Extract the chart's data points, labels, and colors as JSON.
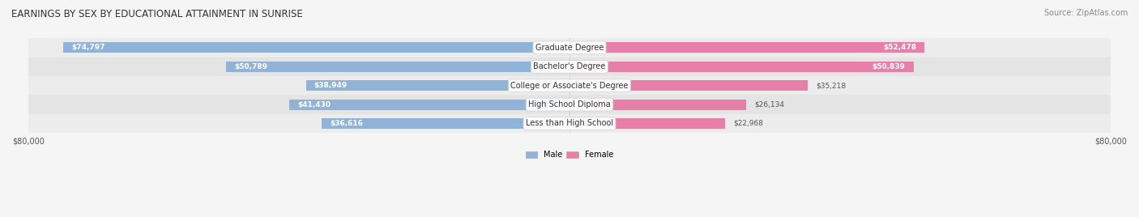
{
  "title": "EARNINGS BY SEX BY EDUCATIONAL ATTAINMENT IN SUNRISE",
  "source": "Source: ZipAtlas.com",
  "categories": [
    "Less than High School",
    "High School Diploma",
    "College or Associate's Degree",
    "Bachelor's Degree",
    "Graduate Degree"
  ],
  "male_values": [
    36616,
    41430,
    38949,
    50789,
    74797
  ],
  "female_values": [
    22968,
    26134,
    35218,
    50839,
    52478
  ],
  "male_color": "#91b3d7",
  "female_color": "#e87fa8",
  "male_label": "Male",
  "female_label": "Female",
  "max_value": 80000,
  "axis_label": "$80,000",
  "row_bg_color_odd": "#f0f0f0",
  "row_bg_color_even": "#e8e8e8",
  "bar_bg_color": "#dde4ed"
}
